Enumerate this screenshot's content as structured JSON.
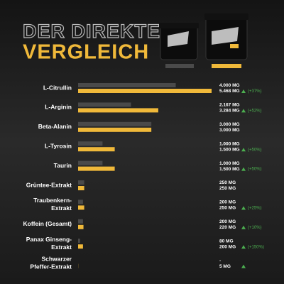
{
  "chart_data": {
    "type": "bar",
    "orientation": "horizontal",
    "title": [
      "DER DIREKTE",
      "VERGLEICH"
    ],
    "categories": [
      [
        "L-Citrullin"
      ],
      [
        "L-Arginin"
      ],
      [
        "Beta-Alanin"
      ],
      [
        "L-Tyrosin"
      ],
      [
        "Taurin"
      ],
      [
        "Grüntee-Extrakt"
      ],
      [
        "Traubenkern-",
        "Extrakt"
      ],
      [
        "Koffein (Gesamt)"
      ],
      [
        "Panax Ginseng-",
        "Extrakt"
      ],
      [
        "Schwarzer",
        "Pfeffer-Extrakt"
      ]
    ],
    "series": [
      {
        "color": "#4a4a4a",
        "values": [
          4000,
          2167,
          3000,
          1000,
          1000,
          250,
          200,
          200,
          80,
          null
        ],
        "value_labels": [
          "4.000 MG",
          "2.167 MG",
          "3.000 MG",
          "1.000 MG",
          "1.000 MG",
          "250 MG",
          "200 MG",
          "200 MG",
          "80 MG",
          "-"
        ]
      },
      {
        "color": "#f0b93a",
        "values": [
          5468,
          3284,
          3000,
          1500,
          1500,
          250,
          250,
          220,
          200,
          5
        ],
        "value_labels": [
          "5.468 MG",
          "3.284 MG",
          "3.000 MG",
          "1.500 MG",
          "1.500 MG",
          "250 MG",
          "250 MG",
          "220 MG",
          "200 MG",
          "5 MG"
        ]
      }
    ],
    "increase": [
      true,
      true,
      false,
      true,
      true,
      false,
      true,
      true,
      true,
      true
    ],
    "change_labels": [
      "(+37%)",
      "(+52%)",
      null,
      "(+50%)",
      "(+50%)",
      null,
      "(+25%)",
      "(+10%)",
      "(+150%)",
      null
    ],
    "increase_color": "#4caf50"
  }
}
